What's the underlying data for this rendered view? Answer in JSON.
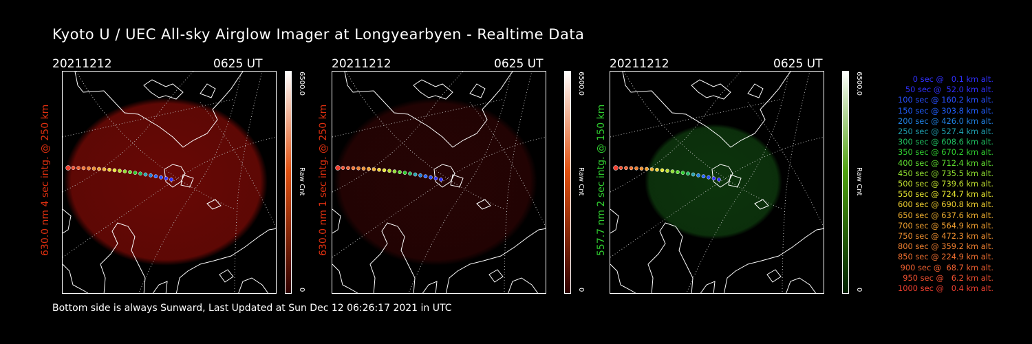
{
  "title": "Kyoto U / UEC All-sky Airglow Imager at Longyearbyen - Realtime Data",
  "panels": [
    {
      "date": "20211212",
      "time": "0625 UT",
      "label": "630.0 nm 4 sec intg. @ 250 km",
      "label_color": "#e03010",
      "cb_max": "6500.0",
      "cb_min": "0",
      "cb_unit": "Raw Cnt",
      "cb_top": "#ffffff",
      "cb_mid": "#e05010",
      "cb_bottom": "#300000",
      "glow": "#7a0a06",
      "glow_opacity": 0.85
    },
    {
      "date": "20211212",
      "time": "0625 UT",
      "label": "630.0 nm 1 sec intg. @ 250 km",
      "label_color": "#e03010",
      "cb_max": "6500.0",
      "cb_min": "0",
      "cb_unit": "Raw Cnt",
      "cb_top": "#ffffff",
      "cb_mid": "#e05010",
      "cb_bottom": "#300000",
      "glow": "#2a0404",
      "glow_opacity": 0.9
    },
    {
      "date": "20211212",
      "time": "0625 UT",
      "label": "557.7 nm 2 sec intg. @ 150 km",
      "label_color": "#30d030",
      "cb_max": "6500.0",
      "cb_min": "0",
      "cb_unit": "Raw Cnt",
      "cb_top": "#ffffff",
      "cb_mid": "#50a010",
      "cb_bottom": "#002000",
      "glow": "#0e3a0e",
      "glow_opacity": 0.9
    }
  ],
  "legend": [
    {
      "text": "0 sec @   0.1 km alt.",
      "color": "#3030ff"
    },
    {
      "text": "50 sec @  52.0 km alt.",
      "color": "#3030ff"
    },
    {
      "text": "100 sec @ 160.2 km alt.",
      "color": "#2850ff"
    },
    {
      "text": "150 sec @ 303.8 km alt.",
      "color": "#2060ff"
    },
    {
      "text": "200 sec @ 426.0 km alt.",
      "color": "#2080e0"
    },
    {
      "text": "250 sec @ 527.4 km alt.",
      "color": "#20a0b0"
    },
    {
      "text": "300 sec @ 608.6 km alt.",
      "color": "#20c060"
    },
    {
      "text": "350 sec @ 670.2 km alt.",
      "color": "#30d030"
    },
    {
      "text": "400 sec @ 712.4 km alt.",
      "color": "#60e030"
    },
    {
      "text": "450 sec @ 735.5 km alt.",
      "color": "#90e030"
    },
    {
      "text": "500 sec @ 739.6 km alt.",
      "color": "#c0e030"
    },
    {
      "text": "550 sec @ 724.7 km alt.",
      "color": "#e8e830"
    },
    {
      "text": "600 sec @ 690.8 km alt.",
      "color": "#f0d030"
    },
    {
      "text": "650 sec @ 637.6 km alt.",
      "color": "#f0b030"
    },
    {
      "text": "700 sec @ 564.9 km alt.",
      "color": "#f0a030"
    },
    {
      "text": "750 sec @ 472.3 km alt.",
      "color": "#f09030"
    },
    {
      "text": "800 sec @ 359.2 km alt.",
      "color": "#f08030"
    },
    {
      "text": "850 sec @ 224.9 km alt.",
      "color": "#f07030"
    },
    {
      "text": "900 sec @  68.7 km alt.",
      "color": "#f06030"
    },
    {
      "text": "950 sec @   6.2 km alt.",
      "color": "#f05030"
    },
    {
      "text": "1000 sec @   0.4 km alt.",
      "color": "#f04030"
    }
  ],
  "footer": "Bottom side is always Sunward, Last Updated at Sun Dec 12 06:26:17 2021 in UTC"
}
